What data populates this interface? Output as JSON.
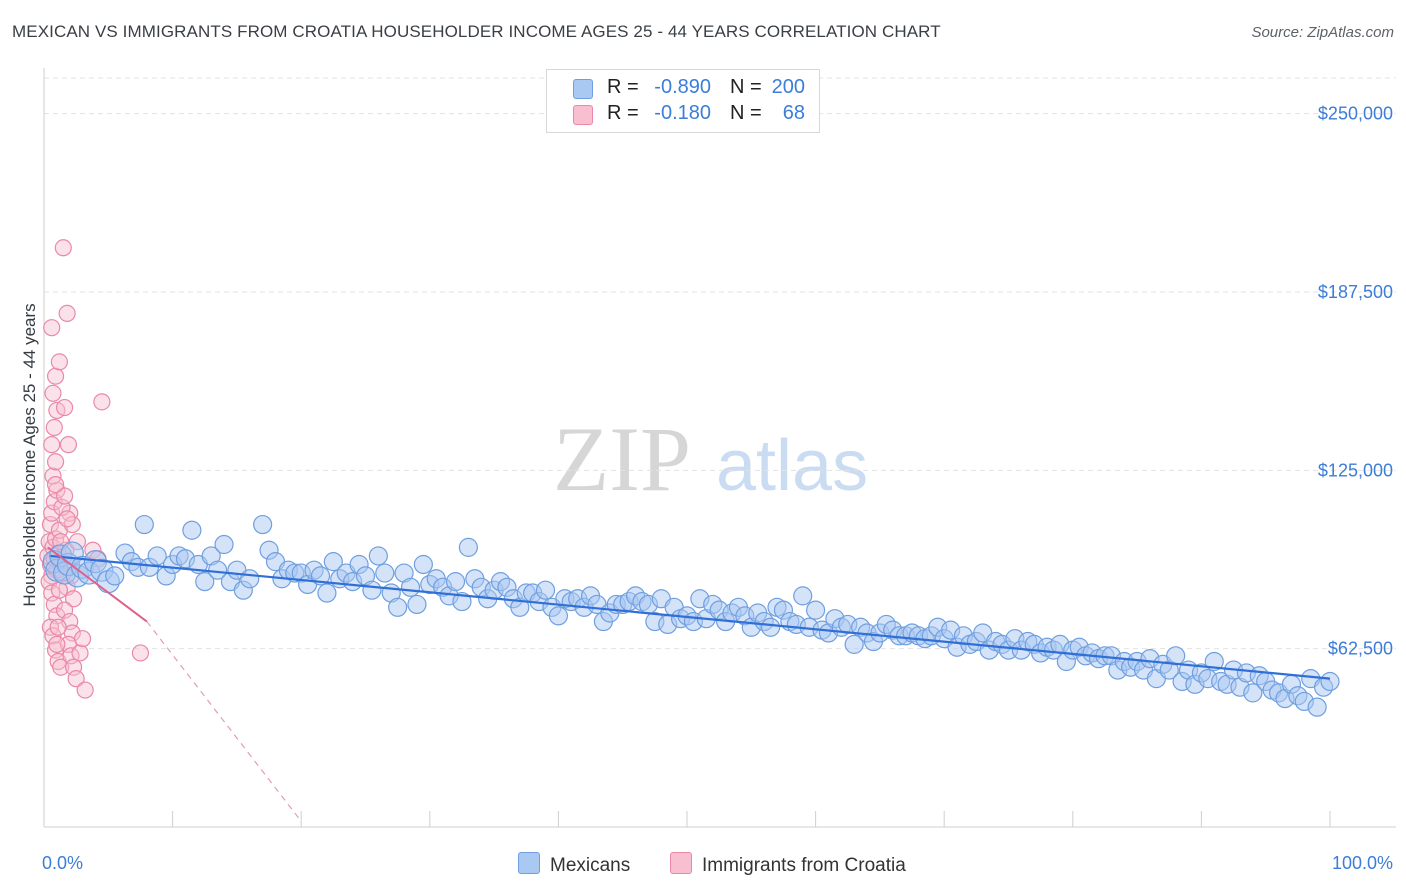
{
  "title": "MEXICAN VS IMMIGRANTS FROM CROATIA HOUSEHOLDER INCOME AGES 25 - 44 YEARS CORRELATION CHART",
  "source": "Source: ZipAtlas.com",
  "watermark": {
    "zip": "ZIP",
    "atlas": "atlas"
  },
  "legend": [
    {
      "r_label": "R =",
      "r_value": "-0.890",
      "n_label": "N =",
      "n_value": "200",
      "color": "#a9c8f2",
      "border": "#6f9fe0"
    },
    {
      "r_label": "R =",
      "r_value": "-0.180",
      "n_label": "N =",
      "n_value": "68",
      "color": "#f7bfd0",
      "border": "#ea88a8"
    }
  ],
  "bottom_legend": [
    {
      "label": "Mexicans",
      "color": "#a9c8f2",
      "border": "#6f9fe0"
    },
    {
      "label": "Immigrants from Croatia",
      "color": "#f7bfd0",
      "border": "#ea88a8"
    }
  ],
  "chart_data": {
    "type": "scatter",
    "title": "MEXICAN VS IMMIGRANTS FROM CROATIA HOUSEHOLDER INCOME AGES 25 - 44 YEARS CORRELATION CHART",
    "xlabel": "",
    "ylabel": "Householder Income Ages 25 - 44 years",
    "xlim": [
      0,
      100
    ],
    "ylim": [
      0,
      262500
    ],
    "x_tick_labels": [
      "0.0%",
      "100.0%"
    ],
    "y_ticks": [
      62500,
      125000,
      187500,
      250000
    ],
    "y_tick_labels": [
      "$62,500",
      "$125,000",
      "$187,500",
      "$250,000"
    ],
    "grid": true,
    "series": [
      {
        "name": "Mexicans",
        "color": "#6f9fe0",
        "fill": "#a9c8f2",
        "trend": {
          "x": [
            0.5,
            100
          ],
          "y": [
            95000,
            52000
          ]
        },
        "points": [
          [
            0.8,
            93000
          ],
          [
            1.0,
            90000
          ],
          [
            1.3,
            95000
          ],
          [
            1.6,
            89000
          ],
          [
            1.9,
            92000
          ],
          [
            2.2,
            96000
          ],
          [
            2.6,
            88000
          ],
          [
            3.0,
            91000
          ],
          [
            3.5,
            89000
          ],
          [
            4.0,
            93000
          ],
          [
            4.5,
            90000
          ],
          [
            5.0,
            86000
          ],
          [
            5.5,
            88000
          ],
          [
            6.3,
            96000
          ],
          [
            6.8,
            93000
          ],
          [
            7.3,
            91000
          ],
          [
            7.8,
            106000
          ],
          [
            8.2,
            91000
          ],
          [
            8.8,
            95000
          ],
          [
            9.5,
            88000
          ],
          [
            10.0,
            92000
          ],
          [
            10.5,
            95000
          ],
          [
            11.0,
            94000
          ],
          [
            11.5,
            104000
          ],
          [
            12.0,
            92000
          ],
          [
            12.5,
            86000
          ],
          [
            13.0,
            95000
          ],
          [
            13.5,
            90000
          ],
          [
            14.0,
            99000
          ],
          [
            14.5,
            86000
          ],
          [
            15.0,
            90000
          ],
          [
            15.5,
            83000
          ],
          [
            16.0,
            87000
          ],
          [
            17.0,
            106000
          ],
          [
            17.5,
            97000
          ],
          [
            18.0,
            93000
          ],
          [
            18.5,
            87000
          ],
          [
            19.0,
            90000
          ],
          [
            19.5,
            89000
          ],
          [
            20.0,
            89000
          ],
          [
            20.5,
            85000
          ],
          [
            21.0,
            90000
          ],
          [
            21.5,
            88000
          ],
          [
            22.0,
            82000
          ],
          [
            22.5,
            93000
          ],
          [
            23.0,
            87000
          ],
          [
            23.5,
            89000
          ],
          [
            24.0,
            86000
          ],
          [
            24.5,
            92000
          ],
          [
            25.0,
            88000
          ],
          [
            25.5,
            83000
          ],
          [
            26.0,
            95000
          ],
          [
            26.5,
            89000
          ],
          [
            27.0,
            82000
          ],
          [
            27.5,
            77000
          ],
          [
            28.0,
            89000
          ],
          [
            28.5,
            84000
          ],
          [
            29.0,
            78000
          ],
          [
            29.5,
            92000
          ],
          [
            30.0,
            85000
          ],
          [
            30.5,
            87000
          ],
          [
            31.0,
            84000
          ],
          [
            31.5,
            81000
          ],
          [
            32.0,
            86000
          ],
          [
            32.5,
            79000
          ],
          [
            33.0,
            98000
          ],
          [
            33.5,
            87000
          ],
          [
            34.0,
            84000
          ],
          [
            34.5,
            80000
          ],
          [
            35.0,
            83000
          ],
          [
            35.5,
            86000
          ],
          [
            36.0,
            84000
          ],
          [
            36.5,
            80000
          ],
          [
            37.0,
            77000
          ],
          [
            37.5,
            82000
          ],
          [
            38.0,
            82000
          ],
          [
            38.5,
            79000
          ],
          [
            39.0,
            83000
          ],
          [
            39.5,
            77000
          ],
          [
            40.0,
            74000
          ],
          [
            40.5,
            80000
          ],
          [
            41.0,
            79000
          ],
          [
            41.5,
            80000
          ],
          [
            42.0,
            77000
          ],
          [
            42.5,
            81000
          ],
          [
            43.0,
            78000
          ],
          [
            43.5,
            72000
          ],
          [
            44.0,
            75000
          ],
          [
            44.5,
            78000
          ],
          [
            45.0,
            78000
          ],
          [
            45.5,
            79000
          ],
          [
            46.0,
            81000
          ],
          [
            46.5,
            79000
          ],
          [
            47.0,
            78000
          ],
          [
            47.5,
            72000
          ],
          [
            48.0,
            80000
          ],
          [
            48.5,
            71000
          ],
          [
            49.0,
            77000
          ],
          [
            49.5,
            73000
          ],
          [
            50.0,
            74000
          ],
          [
            50.5,
            72000
          ],
          [
            51.0,
            80000
          ],
          [
            51.5,
            73000
          ],
          [
            52.0,
            78000
          ],
          [
            52.5,
            76000
          ],
          [
            53.0,
            72000
          ],
          [
            53.5,
            75000
          ],
          [
            54.0,
            77000
          ],
          [
            54.5,
            74000
          ],
          [
            55.0,
            70000
          ],
          [
            55.5,
            75000
          ],
          [
            56.0,
            72000
          ],
          [
            56.5,
            70000
          ],
          [
            57.0,
            77000
          ],
          [
            57.5,
            76000
          ],
          [
            58.0,
            72000
          ],
          [
            58.5,
            71000
          ],
          [
            59.0,
            81000
          ],
          [
            59.5,
            70000
          ],
          [
            60.0,
            76000
          ],
          [
            60.5,
            69000
          ],
          [
            61.0,
            68000
          ],
          [
            61.5,
            73000
          ],
          [
            62.0,
            70000
          ],
          [
            62.5,
            71000
          ],
          [
            63.0,
            64000
          ],
          [
            63.5,
            70000
          ],
          [
            64.0,
            68000
          ],
          [
            64.5,
            65000
          ],
          [
            65.0,
            68000
          ],
          [
            65.5,
            71000
          ],
          [
            66.0,
            69000
          ],
          [
            66.5,
            67000
          ],
          [
            67.0,
            67000
          ],
          [
            67.5,
            68000
          ],
          [
            68.0,
            67000
          ],
          [
            68.5,
            66000
          ],
          [
            69.0,
            67000
          ],
          [
            69.5,
            70000
          ],
          [
            70.0,
            66000
          ],
          [
            70.5,
            69000
          ],
          [
            71.0,
            63000
          ],
          [
            71.5,
            67000
          ],
          [
            72.0,
            64000
          ],
          [
            72.5,
            65000
          ],
          [
            73.0,
            68000
          ],
          [
            73.5,
            62000
          ],
          [
            74.0,
            65000
          ],
          [
            74.5,
            64000
          ],
          [
            75.0,
            62000
          ],
          [
            75.5,
            66000
          ],
          [
            76.0,
            62000
          ],
          [
            76.5,
            65000
          ],
          [
            77.0,
            64000
          ],
          [
            77.5,
            61000
          ],
          [
            78.0,
            63000
          ],
          [
            78.5,
            62000
          ],
          [
            79.0,
            64000
          ],
          [
            79.5,
            58000
          ],
          [
            80.0,
            62000
          ],
          [
            80.5,
            63000
          ],
          [
            81.0,
            60000
          ],
          [
            81.5,
            61000
          ],
          [
            82.0,
            59000
          ],
          [
            82.5,
            60000
          ],
          [
            83.0,
            60000
          ],
          [
            83.5,
            55000
          ],
          [
            84.0,
            58000
          ],
          [
            84.5,
            56000
          ],
          [
            85.0,
            58000
          ],
          [
            85.5,
            55000
          ],
          [
            86.0,
            59000
          ],
          [
            86.5,
            52000
          ],
          [
            87.0,
            57000
          ],
          [
            87.5,
            55000
          ],
          [
            88.0,
            60000
          ],
          [
            88.5,
            51000
          ],
          [
            89.0,
            55000
          ],
          [
            89.5,
            50000
          ],
          [
            90.0,
            54000
          ],
          [
            90.5,
            52000
          ],
          [
            91.0,
            58000
          ],
          [
            91.5,
            51000
          ],
          [
            92.0,
            50000
          ],
          [
            92.5,
            55000
          ],
          [
            93.0,
            49000
          ],
          [
            93.5,
            54000
          ],
          [
            94.0,
            47000
          ],
          [
            94.5,
            53000
          ],
          [
            95.0,
            51000
          ],
          [
            95.5,
            48000
          ],
          [
            96.0,
            47000
          ],
          [
            96.5,
            45000
          ],
          [
            97.0,
            50000
          ],
          [
            97.5,
            46000
          ],
          [
            98.0,
            44000
          ],
          [
            98.5,
            52000
          ],
          [
            99.0,
            42000
          ],
          [
            99.5,
            49000
          ],
          [
            100.0,
            51000
          ]
        ]
      },
      {
        "name": "Immigrants from Croatia",
        "color": "#ea88a8",
        "fill": "#f7bfd0",
        "trend_solid": {
          "x": [
            0.3,
            8.0
          ],
          "y": [
            98000,
            72000
          ]
        },
        "trend_dashed": {
          "x": [
            8.0,
            20.0
          ],
          "y": [
            72000,
            2000
          ]
        },
        "points": [
          [
            0.3,
            95000
          ],
          [
            0.4,
            100000
          ],
          [
            0.5,
            92000
          ],
          [
            0.6,
            88000
          ],
          [
            0.7,
            98000
          ],
          [
            0.8,
            94000
          ],
          [
            0.9,
            101000
          ],
          [
            1.0,
            90000
          ],
          [
            1.1,
            96000
          ],
          [
            1.2,
            93000
          ],
          [
            0.5,
            106000
          ],
          [
            0.6,
            110000
          ],
          [
            0.8,
            114000
          ],
          [
            1.0,
            118000
          ],
          [
            0.7,
            123000
          ],
          [
            0.9,
            128000
          ],
          [
            1.2,
            104000
          ],
          [
            0.4,
            86000
          ],
          [
            0.6,
            82000
          ],
          [
            0.8,
            78000
          ],
          [
            1.0,
            74000
          ],
          [
            0.5,
            70000
          ],
          [
            0.7,
            67000
          ],
          [
            0.9,
            62000
          ],
          [
            1.1,
            58000
          ],
          [
            1.3,
            56000
          ],
          [
            0.6,
            134000
          ],
          [
            0.8,
            140000
          ],
          [
            1.0,
            146000
          ],
          [
            0.7,
            152000
          ],
          [
            0.9,
            158000
          ],
          [
            1.2,
            163000
          ],
          [
            0.6,
            175000
          ],
          [
            1.5,
            203000
          ],
          [
            1.8,
            180000
          ],
          [
            1.6,
            147000
          ],
          [
            1.9,
            134000
          ],
          [
            2.0,
            110000
          ],
          [
            2.2,
            106000
          ],
          [
            1.7,
            97000
          ],
          [
            1.9,
            92000
          ],
          [
            2.1,
            88000
          ],
          [
            1.8,
            84000
          ],
          [
            2.3,
            80000
          ],
          [
            1.6,
            76000
          ],
          [
            2.0,
            72000
          ],
          [
            2.2,
            68000
          ],
          [
            1.9,
            64000
          ],
          [
            2.1,
            60000
          ],
          [
            2.3,
            56000
          ],
          [
            2.5,
            52000
          ],
          [
            2.8,
            61000
          ],
          [
            3.0,
            66000
          ],
          [
            3.2,
            48000
          ],
          [
            1.4,
            112000
          ],
          [
            1.6,
            116000
          ],
          [
            1.8,
            108000
          ],
          [
            1.3,
            100000
          ],
          [
            1.5,
            89000
          ],
          [
            1.2,
            83000
          ],
          [
            1.1,
            70000
          ],
          [
            1.0,
            64000
          ],
          [
            0.9,
            120000
          ],
          [
            3.8,
            97000
          ],
          [
            4.2,
            94000
          ],
          [
            4.5,
            149000
          ],
          [
            7.5,
            61000
          ],
          [
            2.6,
            100000
          ]
        ]
      }
    ]
  }
}
